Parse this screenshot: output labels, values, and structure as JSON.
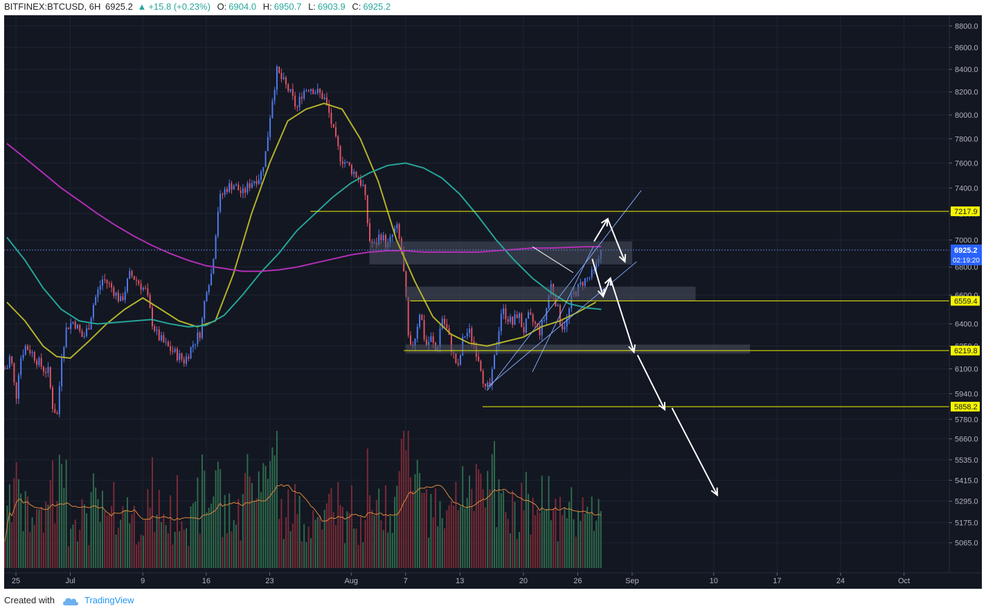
{
  "header": {
    "symbol": "BITFINEX:BTCUSD, 6H",
    "last": "6925.2",
    "change_arrow": "▲",
    "change": "+15.8 (+0.23%)",
    "o_label": "O:",
    "o_value": "6904.0",
    "h_label": "H:",
    "h_value": "6950.7",
    "l_label": "L:",
    "l_value": "6903.9",
    "c_label": "C:",
    "c_value": "6925.2"
  },
  "footer": {
    "created_with": "Created with",
    "brand": "TradingView"
  },
  "colors": {
    "background": "#131722",
    "grid": "#1e2433",
    "up": "#4e7cf0",
    "down": "#e25564",
    "vol_up": "#2f6b4d",
    "vol_down": "#7a2b36",
    "ma_fast": "#b5b22a",
    "ma_mid": "#26a69a",
    "ma_slow": "#b22fb5",
    "level": "#f5f500",
    "zone": "#4a5160",
    "channel": "#7ea6f5",
    "arrow": "#ffffff",
    "price_tag": "#2962ff"
  },
  "chart_data": {
    "type": "candlestick",
    "symbol": "BITFINEX:BTCUSD",
    "timeframe": "6H",
    "y_scale": "log",
    "ylim": [
      4960,
      8900
    ],
    "y_ticks": [
      "8800.0",
      "8600.0",
      "8400.0",
      "8200.0",
      "8000.0",
      "7800.0",
      "7600.0",
      "7400.0",
      "7200.0",
      "7000.0",
      "6800.0",
      "6600.0",
      "6400.0",
      "6250.0",
      "6100.0",
      "5940.0",
      "5780.0",
      "5660.0",
      "5535.0",
      "5415.0",
      "5295.0",
      "5175.0",
      "5065.0"
    ],
    "x_ticks": [
      "25",
      "Jul",
      "9",
      "16",
      "23",
      "Aug",
      "7",
      "13",
      "20",
      "26",
      "Sep",
      "10",
      "17",
      "24",
      "Oct"
    ],
    "x_tick_days": [
      -6,
      0,
      8,
      15,
      22,
      31,
      37,
      43,
      50,
      56,
      62,
      71,
      78,
      85,
      92
    ],
    "x_range_days": [
      -7.3,
      97
    ],
    "last_candle_day": 58.6,
    "price_path_keys": [
      [
        -7,
        6100
      ],
      [
        -6.6,
        6200
      ],
      [
        -6,
        5900
      ],
      [
        -5.6,
        6150
      ],
      [
        -5,
        6250
      ],
      [
        -4.4,
        6220
      ],
      [
        -3.6,
        6150
      ],
      [
        -3,
        6100
      ],
      [
        -2.4,
        6080
      ],
      [
        -2,
        5870
      ],
      [
        -1.4,
        5800
      ],
      [
        -1,
        6180
      ],
      [
        -0.4,
        6380
      ],
      [
        0.4,
        6420
      ],
      [
        1.4,
        6300
      ],
      [
        2,
        6380
      ],
      [
        2.6,
        6550
      ],
      [
        3.6,
        6720
      ],
      [
        4.6,
        6650
      ],
      [
        5.6,
        6550
      ],
      [
        6.6,
        6750
      ],
      [
        7.4,
        6700
      ],
      [
        8.4,
        6620
      ],
      [
        9,
        6420
      ],
      [
        9.6,
        6320
      ],
      [
        10.6,
        6250
      ],
      [
        11.6,
        6200
      ],
      [
        12.6,
        6150
      ],
      [
        13.6,
        6270
      ],
      [
        14.4,
        6350
      ],
      [
        15,
        6650
      ],
      [
        15.6,
        6760
      ],
      [
        16.4,
        7300
      ],
      [
        17.2,
        7400
      ],
      [
        18,
        7430
      ],
      [
        19,
        7350
      ],
      [
        20,
        7450
      ],
      [
        21,
        7500
      ],
      [
        21.6,
        7700
      ],
      [
        22.2,
        8100
      ],
      [
        22.8,
        8380
      ],
      [
        23.4,
        8300
      ],
      [
        24.2,
        8200
      ],
      [
        25,
        8050
      ],
      [
        25.6,
        8200
      ],
      [
        26.4,
        8250
      ],
      [
        27.2,
        8200
      ],
      [
        28,
        8150
      ],
      [
        28.6,
        8000
      ],
      [
        29.2,
        7800
      ],
      [
        29.8,
        7650
      ],
      [
        30.4,
        7600
      ],
      [
        31,
        7550
      ],
      [
        31.6,
        7500
      ],
      [
        32.4,
        7400
      ],
      [
        33,
        7000
      ],
      [
        33.6,
        6950
      ],
      [
        34.2,
        7050
      ],
      [
        35,
        6950
      ],
      [
        36,
        7100
      ],
      [
        36.6,
        6900
      ],
      [
        37,
        6600
      ],
      [
        37.4,
        6200
      ],
      [
        38,
        6300
      ],
      [
        38.6,
        6500
      ],
      [
        39.2,
        6250
      ],
      [
        39.8,
        6300
      ],
      [
        40.4,
        6200
      ],
      [
        41,
        6450
      ],
      [
        41.6,
        6350
      ],
      [
        42.2,
        6200
      ],
      [
        42.8,
        6100
      ],
      [
        43.4,
        6320
      ],
      [
        44,
        6350
      ],
      [
        44.6,
        6250
      ],
      [
        45.2,
        6150
      ],
      [
        45.8,
        5960
      ],
      [
        46.4,
        6000
      ],
      [
        47,
        6250
      ],
      [
        47.6,
        6500
      ],
      [
        48.2,
        6450
      ],
      [
        48.8,
        6400
      ],
      [
        49.4,
        6480
      ],
      [
        50,
        6350
      ],
      [
        50.6,
        6450
      ],
      [
        51.2,
        6400
      ],
      [
        51.8,
        6350
      ],
      [
        52.4,
        6450
      ],
      [
        53,
        6680
      ],
      [
        53.6,
        6550
      ],
      [
        54.2,
        6380
      ],
      [
        54.8,
        6420
      ],
      [
        55.4,
        6600
      ],
      [
        56,
        6640
      ],
      [
        56.6,
        6700
      ],
      [
        57.2,
        6720
      ],
      [
        57.8,
        6760
      ],
      [
        58.6,
        6925.2
      ]
    ],
    "volume_range": [
      0,
      1
    ],
    "moving_averages": [
      {
        "name": "MA fast",
        "color": "#b5b22a",
        "points": [
          [
            -7,
            6550
          ],
          [
            -5,
            6420
          ],
          [
            -3,
            6250
          ],
          [
            -1.5,
            6180
          ],
          [
            0,
            6170
          ],
          [
            2,
            6280
          ],
          [
            4,
            6400
          ],
          [
            6,
            6500
          ],
          [
            8,
            6580
          ],
          [
            10,
            6500
          ],
          [
            12,
            6420
          ],
          [
            14,
            6380
          ],
          [
            16,
            6420
          ],
          [
            18,
            6750
          ],
          [
            20,
            7200
          ],
          [
            22,
            7600
          ],
          [
            24,
            7950
          ],
          [
            26,
            8050
          ],
          [
            28,
            8100
          ],
          [
            30,
            8050
          ],
          [
            32,
            7800
          ],
          [
            34,
            7450
          ],
          [
            36,
            7000
          ],
          [
            38,
            6700
          ],
          [
            40,
            6450
          ],
          [
            42,
            6330
          ],
          [
            44,
            6270
          ],
          [
            46,
            6250
          ],
          [
            48,
            6280
          ],
          [
            50,
            6310
          ],
          [
            52,
            6380
          ],
          [
            54,
            6420
          ],
          [
            56,
            6480
          ],
          [
            58,
            6550
          ]
        ]
      },
      {
        "name": "MA mid",
        "color": "#26a69a",
        "points": [
          [
            -7,
            7020
          ],
          [
            -5,
            6850
          ],
          [
            -3,
            6650
          ],
          [
            -1,
            6500
          ],
          [
            1,
            6420
          ],
          [
            3,
            6400
          ],
          [
            5,
            6410
          ],
          [
            7,
            6420
          ],
          [
            9,
            6430
          ],
          [
            11,
            6400
          ],
          [
            13,
            6380
          ],
          [
            15,
            6390
          ],
          [
            17,
            6460
          ],
          [
            19,
            6600
          ],
          [
            21,
            6760
          ],
          [
            23,
            6900
          ],
          [
            25,
            7070
          ],
          [
            27,
            7200
          ],
          [
            29,
            7330
          ],
          [
            31,
            7440
          ],
          [
            33,
            7520
          ],
          [
            35,
            7580
          ],
          [
            37,
            7600
          ],
          [
            39,
            7560
          ],
          [
            41,
            7480
          ],
          [
            43,
            7350
          ],
          [
            45,
            7180
          ],
          [
            47,
            7000
          ],
          [
            49,
            6850
          ],
          [
            51,
            6720
          ],
          [
            53,
            6620
          ],
          [
            55,
            6540
          ],
          [
            57,
            6510
          ],
          [
            58.6,
            6500
          ]
        ]
      },
      {
        "name": "MA slow",
        "color": "#b22fb5",
        "points": [
          [
            -7,
            7760
          ],
          [
            -5,
            7640
          ],
          [
            -3,
            7520
          ],
          [
            -1,
            7400
          ],
          [
            1,
            7300
          ],
          [
            3,
            7200
          ],
          [
            5,
            7110
          ],
          [
            7,
            7030
          ],
          [
            9,
            6960
          ],
          [
            11,
            6900
          ],
          [
            13,
            6850
          ],
          [
            15,
            6810
          ],
          [
            17,
            6790
          ],
          [
            19,
            6770
          ],
          [
            21,
            6770
          ],
          [
            23,
            6780
          ],
          [
            25,
            6800
          ],
          [
            27,
            6830
          ],
          [
            29,
            6860
          ],
          [
            31,
            6890
          ],
          [
            33,
            6910
          ],
          [
            35,
            6920
          ],
          [
            37,
            6920
          ],
          [
            39,
            6910
          ],
          [
            41,
            6910
          ],
          [
            43,
            6910
          ],
          [
            45,
            6910
          ],
          [
            47,
            6920
          ],
          [
            49,
            6930
          ],
          [
            51,
            6940
          ],
          [
            53,
            6940
          ],
          [
            55,
            6945
          ],
          [
            57,
            6950
          ],
          [
            58.6,
            6950
          ]
        ]
      }
    ],
    "levels": [
      {
        "price": 7217.9,
        "label": "7217.9",
        "from_day": 26.5
      },
      {
        "price": 6559.4,
        "label": "6559.4",
        "from_day": 37.5
      },
      {
        "price": 6219.8,
        "label": "6219.8",
        "from_day": 36.8
      },
      {
        "price": 5858.2,
        "label": "5858.2",
        "from_day": 45.5
      }
    ],
    "zones": [
      {
        "from_day": 33,
        "to_day": 62,
        "low": 6820,
        "high": 6990
      },
      {
        "from_day": 37,
        "to_day": 69,
        "low": 6560,
        "high": 6660
      },
      {
        "from_day": 37,
        "to_day": 75,
        "low": 6200,
        "high": 6260
      }
    ],
    "channel_lines": [
      [
        [
          46,
          5960
        ],
        [
          63,
          7380
        ]
      ],
      [
        [
          46,
          5980
        ],
        [
          62.5,
          6840
        ]
      ],
      [
        [
          51,
          6080
        ],
        [
          57.7,
          6950
        ]
      ],
      [
        [
          51,
          6950
        ],
        [
          55.5,
          6760
        ]
      ]
    ],
    "arrows": [
      [
        [
          57.8,
          6990
        ],
        [
          59.3,
          7160
        ]
      ],
      [
        [
          59.3,
          7160
        ],
        [
          61.2,
          6840
        ]
      ],
      [
        [
          57.6,
          6860
        ],
        [
          58.8,
          6590
        ]
      ],
      [
        [
          58.8,
          6590
        ],
        [
          59.6,
          6720
        ]
      ],
      [
        [
          59.6,
          6720
        ],
        [
          62.2,
          6210
        ]
      ],
      [
        [
          62.6,
          6190
        ],
        [
          65.6,
          5840
        ]
      ],
      [
        [
          66.4,
          5850
        ],
        [
          71.4,
          5330
        ]
      ]
    ],
    "current_price": 6925.2,
    "countdown": "02:19:20"
  }
}
